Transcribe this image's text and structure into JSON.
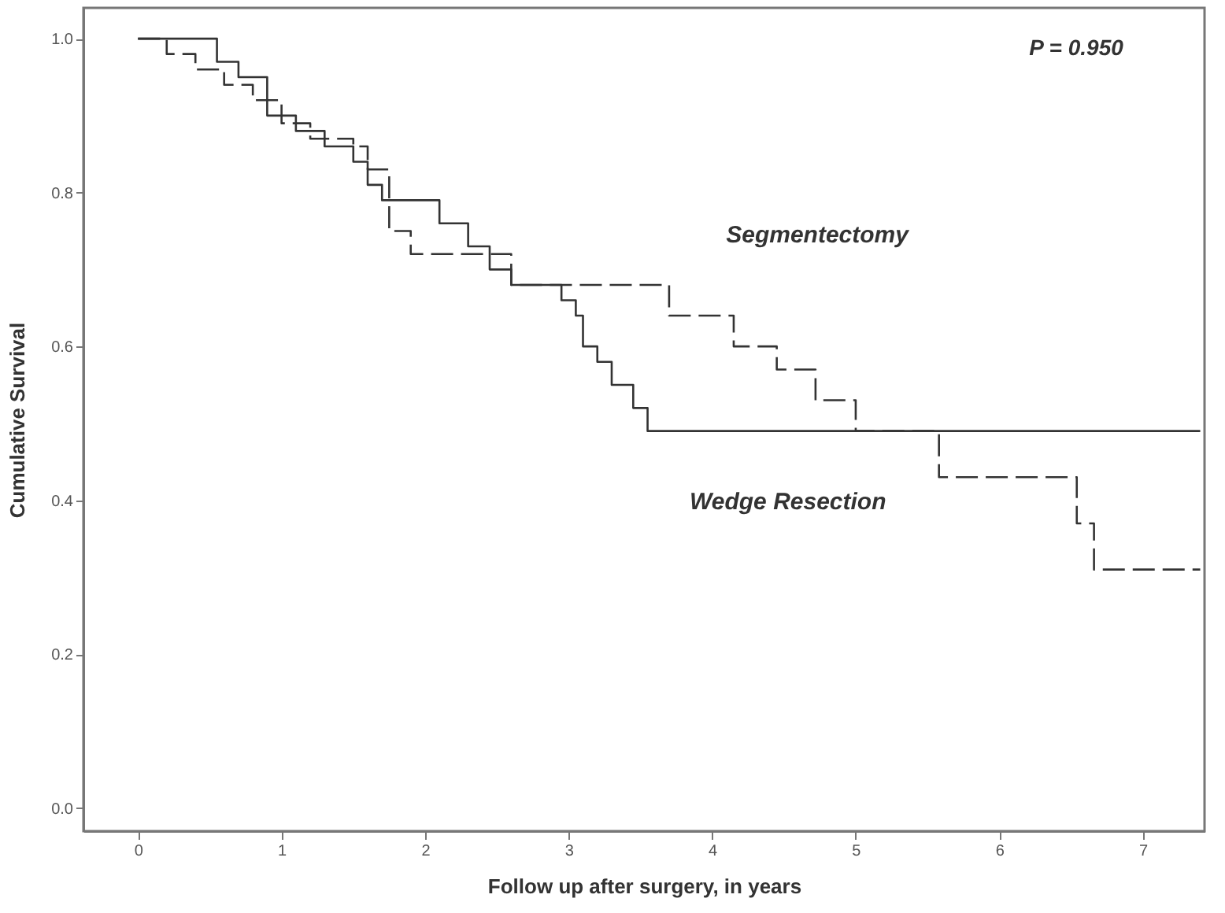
{
  "chart_data": {
    "type": "step",
    "xlabel": "Follow up after surgery, in years",
    "ylabel": "Cumulative Survival",
    "annotations": [
      "P = 0.950"
    ],
    "xlim": [
      -0.38,
      7.43
    ],
    "ylim": [
      -0.03,
      1.04
    ],
    "xticks": [
      0,
      1,
      2,
      3,
      4,
      5,
      6,
      7
    ],
    "yticks": [
      {
        "value": 0,
        "label": "0.0"
      },
      {
        "value": 0.2,
        "label": "0.2"
      },
      {
        "value": 0.4,
        "label": "0.4"
      },
      {
        "value": 0.6,
        "label": "0.6"
      },
      {
        "value": 0.8,
        "label": "0.8"
      },
      {
        "value": 1,
        "label": "1.0"
      }
    ],
    "grid": false,
    "series": [
      {
        "name": "Segmentectomy",
        "color": "#333333",
        "line_style": "dashed",
        "x": [
          0,
          0.2,
          0.4,
          0.6,
          0.8,
          1.0,
          1.2,
          1.5,
          1.6,
          1.75,
          1.9,
          2.5,
          2.6,
          3.7,
          4.15,
          4.45,
          4.72,
          5.0,
          5.58,
          6.54,
          6.66,
          7.4
        ],
        "values": [
          1.0,
          0.98,
          0.96,
          0.94,
          0.92,
          0.89,
          0.87,
          0.86,
          0.83,
          0.75,
          0.72,
          0.72,
          0.68,
          0.64,
          0.6,
          0.57,
          0.53,
          0.49,
          0.43,
          0.37,
          0.31,
          0.31
        ]
      },
      {
        "name": "Wedge Resection",
        "color": "#333333",
        "line_style": "solid",
        "x": [
          0,
          0.55,
          0.7,
          0.9,
          1.1,
          1.3,
          1.5,
          1.6,
          1.7,
          2.1,
          2.3,
          2.45,
          2.6,
          2.95,
          3.05,
          3.1,
          3.2,
          3.3,
          3.45,
          3.55,
          7.4
        ],
        "values": [
          1.0,
          0.97,
          0.95,
          0.9,
          0.88,
          0.86,
          0.84,
          0.81,
          0.79,
          0.76,
          0.73,
          0.7,
          0.68,
          0.66,
          0.64,
          0.6,
          0.58,
          0.55,
          0.52,
          0.49,
          0.49
        ]
      }
    ]
  }
}
